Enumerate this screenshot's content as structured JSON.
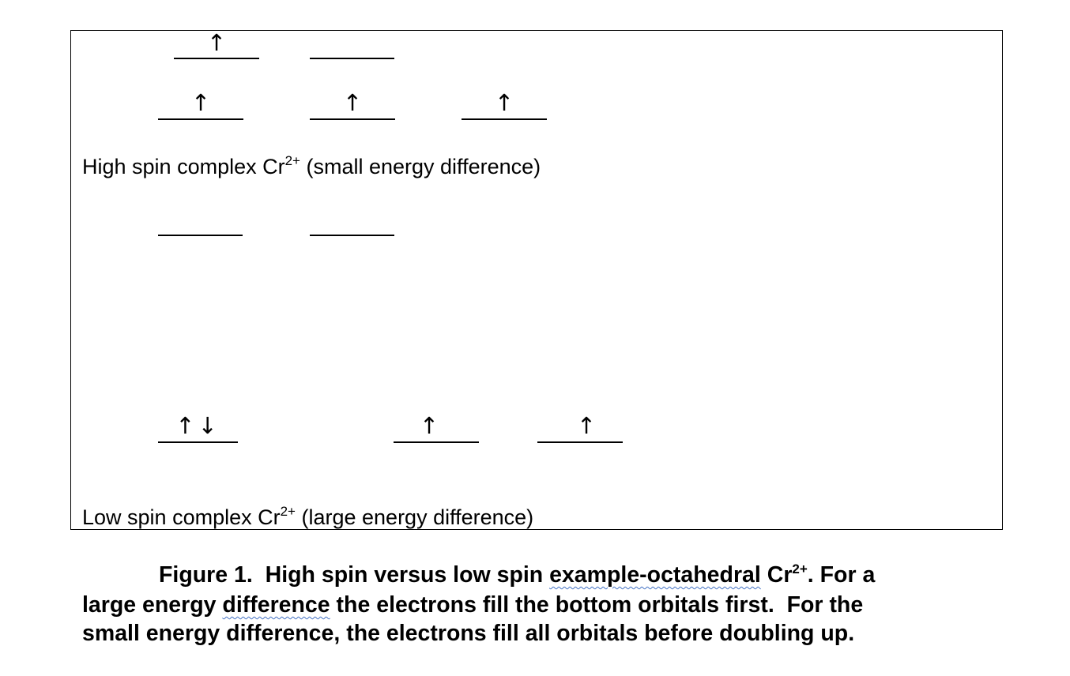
{
  "figure": {
    "high_spin": {
      "eg_orbitals": [
        {
          "electrons": "↑"
        },
        {
          "electrons": ""
        }
      ],
      "t2g_orbitals": [
        {
          "electrons": "↑"
        },
        {
          "electrons": "↑"
        },
        {
          "electrons": "↑"
        }
      ],
      "caption_pre": "High spin complex Cr",
      "caption_sup": "2+",
      "caption_post": " (small energy difference)"
    },
    "low_spin": {
      "eg_orbitals": [
        {
          "electrons": ""
        },
        {
          "electrons": ""
        }
      ],
      "t2g_orbitals": [
        {
          "electrons": "↑↓"
        },
        {
          "electrons": "↑"
        },
        {
          "electrons": "↑"
        }
      ],
      "caption_pre": "Low spin complex Cr",
      "caption_sup": "2+",
      "caption_post": " (large energy difference)"
    }
  },
  "figure_caption": {
    "line1_label": "Figure 1.",
    "line1_text": "  High spin versus low spin ",
    "line1_flagged": "example-octahedral",
    "line1_ion": " Cr",
    "line1_sup": "2+",
    "line1_end": ". For a",
    "line2_start": "large energy ",
    "line2_flagged": "difference",
    "line2_end": " the electrons fill the bottom orbitals first.  For the",
    "line3": "small energy difference, the electrons fill all orbitals before doubling up."
  },
  "colors": {
    "text": "#000000",
    "spellcheck_underline": "#4472c4",
    "border": "#000000"
  }
}
